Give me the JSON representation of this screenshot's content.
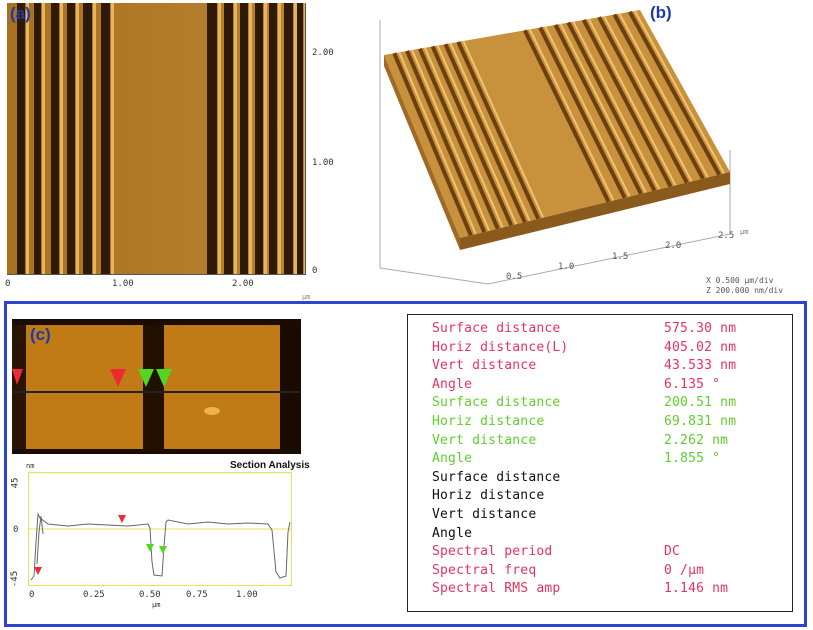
{
  "panels": {
    "a": {
      "label": "(a)"
    },
    "b": {
      "label": "(b)"
    },
    "c": {
      "label": "(c)"
    }
  },
  "panel_a": {
    "y_ticks": [
      "2.00",
      "1.00",
      "0"
    ],
    "x_ticks": [
      "0",
      "1.00",
      "2.00"
    ],
    "x_unit": "μm"
  },
  "panel_b": {
    "x_ticks": [
      "0.5",
      "1.0",
      "1.5",
      "2.0",
      "2.5"
    ],
    "x_unit": "μm",
    "scale_x": "X  0.500 μm/div",
    "scale_z": "Z  200.000 nm/div"
  },
  "section": {
    "title": "Section Analysis",
    "y_unit": "nm",
    "y_ticks": [
      "45",
      "0",
      "-45"
    ],
    "x_ticks": [
      "0",
      "0.25",
      "0.50",
      "0.75",
      "1.00"
    ],
    "x_unit": "μm"
  },
  "results": [
    {
      "label": "Surface distance",
      "value": "575.30 nm",
      "color": "#e8325c"
    },
    {
      "label": "Horiz distance(L)",
      "value": "405.02 nm",
      "color": "#e8325c"
    },
    {
      "label": "Vert distance",
      "value": "43.533 nm",
      "color": "#e8325c"
    },
    {
      "label": "Angle",
      "value": "6.135 °",
      "color": "#e8325c"
    },
    {
      "label": "Surface distance",
      "value": "200.51 nm",
      "color": "#5fcf2f"
    },
    {
      "label": "Horiz distance",
      "value": "69.831 nm",
      "color": "#5fcf2f"
    },
    {
      "label": "Vert distance",
      "value": "2.262 nm",
      "color": "#5fcf2f"
    },
    {
      "label": "Angle",
      "value": "1.855 °",
      "color": "#5fcf2f"
    },
    {
      "label": "Surface distance",
      "value": "",
      "color": "#111111"
    },
    {
      "label": "Horiz distance",
      "value": "",
      "color": "#111111"
    },
    {
      "label": "Vert distance",
      "value": "",
      "color": "#111111"
    },
    {
      "label": "Angle",
      "value": "",
      "color": "#111111"
    },
    {
      "label": "Spectral period",
      "value": "DC",
      "color": "#e8325c"
    },
    {
      "label": "Spectral freq",
      "value": "0 /μm",
      "color": "#e8325c"
    },
    {
      "label": "Spectral RMS amp",
      "value": "1.146 nm",
      "color": "#e8325c"
    }
  ]
}
